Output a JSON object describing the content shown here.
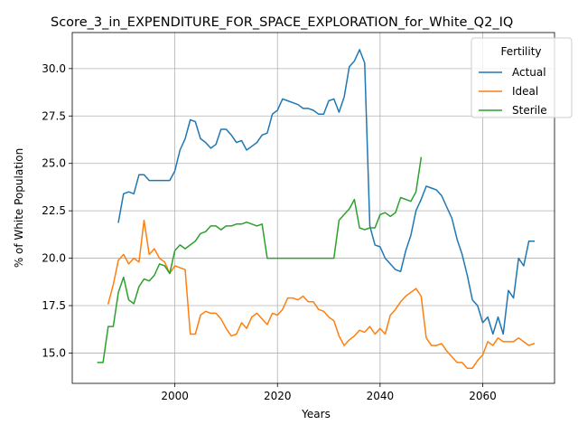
{
  "chart_data": {
    "type": "line",
    "title": "Score_3_in_EXPENDITURE_FOR_SPACE_EXPLORATION_for_White_Q2_IQ",
    "xlabel": "Years",
    "ylabel": "% of White Population",
    "xlim": [
      1980,
      2074
    ],
    "ylim": [
      13.4,
      31.9
    ],
    "xticks": [
      2000,
      2020,
      2040,
      2060
    ],
    "yticks": [
      15.0,
      17.5,
      20.0,
      22.5,
      25.0,
      27.5,
      30.0
    ],
    "xtick_labels": [
      "2000",
      "2020",
      "2040",
      "2060"
    ],
    "ytick_labels": [
      "15.0",
      "17.5",
      "20.0",
      "22.5",
      "25.0",
      "27.5",
      "30.0"
    ],
    "grid": true,
    "legend": {
      "title": "Fertility",
      "placement": "top-right"
    },
    "series": [
      {
        "name": "Actual",
        "color": "#1f77b4",
        "x": [
          1989,
          1990,
          1991,
          1992,
          1993,
          1994,
          1995,
          1996,
          1997,
          1998,
          1999,
          2000,
          2001,
          2002,
          2003,
          2004,
          2005,
          2006,
          2007,
          2008,
          2009,
          2010,
          2011,
          2012,
          2013,
          2014,
          2015,
          2016,
          2017,
          2018,
          2019,
          2020,
          2021,
          2022,
          2023,
          2024,
          2025,
          2026,
          2027,
          2028,
          2029,
          2030,
          2031,
          2032,
          2033,
          2034,
          2035,
          2036,
          2037,
          2038,
          2039,
          2040,
          2041,
          2042,
          2043,
          2044,
          2045,
          2046,
          2047,
          2048,
          2049,
          2050,
          2051,
          2052,
          2053,
          2054,
          2055,
          2056,
          2057,
          2058,
          2059,
          2060,
          2061,
          2062,
          2063,
          2064,
          2065,
          2066,
          2067,
          2068,
          2069,
          2070
        ],
        "values": [
          21.9,
          23.4,
          23.5,
          23.4,
          24.4,
          24.4,
          24.1,
          24.1,
          24.1,
          24.1,
          24.1,
          24.6,
          25.7,
          26.3,
          27.3,
          27.2,
          26.3,
          26.1,
          25.8,
          26.0,
          26.8,
          26.8,
          26.5,
          26.1,
          26.2,
          25.7,
          25.9,
          26.1,
          26.5,
          26.6,
          27.6,
          27.8,
          28.4,
          28.3,
          28.2,
          28.1,
          27.9,
          27.9,
          27.8,
          27.6,
          27.6,
          28.3,
          28.4,
          27.7,
          28.5,
          30.1,
          30.4,
          31.0,
          30.3,
          21.7,
          20.7,
          20.6,
          20.0,
          19.7,
          19.4,
          19.3,
          20.4,
          21.2,
          22.5,
          23.1,
          23.8,
          23.7,
          23.6,
          23.3,
          22.7,
          22.1,
          21.0,
          20.2,
          19.1,
          17.8,
          17.5,
          16.6,
          16.9,
          16.0,
          16.9,
          16.0,
          18.3,
          17.9,
          20.0,
          19.6,
          20.9,
          20.9
        ]
      },
      {
        "name": "Ideal",
        "color": "#ff7f0e",
        "x": [
          1987,
          1988,
          1989,
          1990,
          1991,
          1992,
          1993,
          1994,
          1995,
          1996,
          1997,
          1998,
          1999,
          2000,
          2001,
          2002,
          2003,
          2004,
          2005,
          2006,
          2007,
          2008,
          2009,
          2010,
          2011,
          2012,
          2013,
          2014,
          2015,
          2016,
          2017,
          2018,
          2019,
          2020,
          2021,
          2022,
          2023,
          2024,
          2025,
          2026,
          2027,
          2028,
          2029,
          2030,
          2031,
          2032,
          2033,
          2034,
          2035,
          2036,
          2037,
          2038,
          2039,
          2040,
          2041,
          2042,
          2043,
          2044,
          2045,
          2046,
          2047,
          2048,
          2049,
          2050,
          2051,
          2052,
          2053,
          2054,
          2055,
          2056,
          2057,
          2058,
          2059,
          2060,
          2061,
          2062,
          2063,
          2064,
          2065,
          2066,
          2067,
          2068,
          2069,
          2070
        ],
        "values": [
          17.6,
          18.6,
          19.9,
          20.2,
          19.7,
          20.0,
          19.8,
          22.0,
          20.2,
          20.5,
          20.0,
          19.8,
          19.2,
          19.6,
          19.5,
          19.4,
          16.0,
          16.0,
          17.0,
          17.2,
          17.1,
          17.1,
          16.8,
          16.3,
          15.9,
          16.0,
          16.6,
          16.3,
          16.9,
          17.1,
          16.8,
          16.5,
          17.1,
          17.0,
          17.3,
          17.9,
          17.9,
          17.8,
          18.0,
          17.7,
          17.7,
          17.3,
          17.2,
          16.9,
          16.7,
          15.9,
          15.4,
          15.7,
          15.9,
          16.2,
          16.1,
          16.4,
          16.0,
          16.3,
          16.0,
          17.0,
          17.3,
          17.7,
          18.0,
          18.2,
          18.4,
          18.0,
          15.8,
          15.4,
          15.4,
          15.5,
          15.1,
          14.8,
          14.5,
          14.5,
          14.2,
          14.2,
          14.6,
          14.9,
          15.6,
          15.4,
          15.8,
          15.6,
          15.6,
          15.6,
          15.8,
          15.6,
          15.4,
          15.5
        ]
      },
      {
        "name": "Sterile",
        "color": "#2ca02c",
        "x": [
          1985,
          1986,
          1987,
          1988,
          1989,
          1990,
          1991,
          1992,
          1993,
          1994,
          1995,
          1996,
          1997,
          1998,
          1999,
          2000,
          2001,
          2002,
          2003,
          2004,
          2005,
          2006,
          2007,
          2008,
          2009,
          2010,
          2011,
          2012,
          2013,
          2014,
          2015,
          2016,
          2017,
          2018,
          2019,
          2020,
          2021,
          2022,
          2023,
          2024,
          2025,
          2026,
          2027,
          2028,
          2029,
          2030,
          2031,
          2032,
          2033,
          2034,
          2035,
          2036,
          2037,
          2038,
          2039,
          2040,
          2041,
          2042,
          2043,
          2044,
          2045,
          2046,
          2047,
          2048
        ],
        "values": [
          14.5,
          14.5,
          16.4,
          16.4,
          18.2,
          19.0,
          17.8,
          17.6,
          18.5,
          18.9,
          18.8,
          19.1,
          19.7,
          19.6,
          19.2,
          20.4,
          20.7,
          20.5,
          20.7,
          20.9,
          21.3,
          21.4,
          21.7,
          21.7,
          21.5,
          21.7,
          21.7,
          21.8,
          21.8,
          21.9,
          21.8,
          21.7,
          21.8,
          20.0,
          20.0,
          20.0,
          20.0,
          20.0,
          20.0,
          20.0,
          20.0,
          20.0,
          20.0,
          20.0,
          20.0,
          20.0,
          20.0,
          22.0,
          22.3,
          22.6,
          23.1,
          21.6,
          21.5,
          21.6,
          21.6,
          22.3,
          22.4,
          22.2,
          22.4,
          23.2,
          23.1,
          23.0,
          23.5,
          25.3
        ]
      }
    ]
  }
}
